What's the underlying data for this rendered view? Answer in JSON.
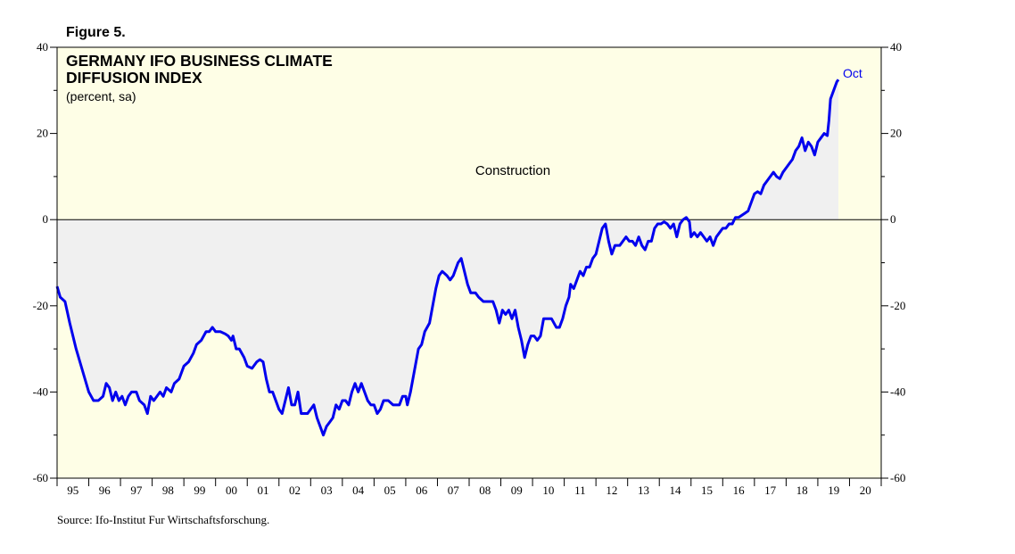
{
  "figure_label": "Figure 5.",
  "source": "Source: Ifo-Institut Fur Wirtschaftsforschung.",
  "colors": {
    "plot_background": "#fefee6",
    "fill": "#f0f0f0",
    "series_line": "#0000ee",
    "axis": "#000000"
  },
  "chart_data": {
    "type": "area",
    "title": "GERMANY IFO BUSINESS CLIMATE",
    "title_line2": "DIFFUSION INDEX",
    "subtitle": "(percent, sa)",
    "annotation": "Construction",
    "end_label": "Oct",
    "ylim": [
      -60,
      40
    ],
    "xlim": [
      1995.0,
      2021.0
    ],
    "y_ticks": [
      -60,
      -40,
      -20,
      0,
      20,
      40
    ],
    "x_tick_labels": [
      "95",
      "96",
      "97",
      "98",
      "99",
      "00",
      "01",
      "02",
      "03",
      "04",
      "05",
      "06",
      "07",
      "08",
      "09",
      "10",
      "11",
      "12",
      "13",
      "14",
      "15",
      "16",
      "17",
      "18",
      "19",
      "20"
    ],
    "grid": false,
    "series": [
      {
        "values": [
          [
            1995.0,
            -15.5
          ],
          [
            1995.1,
            -18.0
          ],
          [
            1995.25,
            -19.0
          ],
          [
            1995.4,
            -24.0
          ],
          [
            1995.6,
            -30.0
          ],
          [
            1995.8,
            -35.0
          ],
          [
            1996.0,
            -40.0
          ],
          [
            1996.15,
            -42.0
          ],
          [
            1996.3,
            -42.0
          ],
          [
            1996.45,
            -41.0
          ],
          [
            1996.55,
            -38.0
          ],
          [
            1996.65,
            -39.0
          ],
          [
            1996.75,
            -42.0
          ],
          [
            1996.85,
            -40.0
          ],
          [
            1996.95,
            -42.0
          ],
          [
            1997.05,
            -41.0
          ],
          [
            1997.15,
            -43.0
          ],
          [
            1997.25,
            -41.0
          ],
          [
            1997.35,
            -40.0
          ],
          [
            1997.5,
            -40.0
          ],
          [
            1997.6,
            -42.0
          ],
          [
            1997.75,
            -43.0
          ],
          [
            1997.85,
            -45.0
          ],
          [
            1997.95,
            -41.0
          ],
          [
            1998.05,
            -42.0
          ],
          [
            1998.15,
            -41.0
          ],
          [
            1998.25,
            -40.0
          ],
          [
            1998.35,
            -41.0
          ],
          [
            1998.45,
            -39.0
          ],
          [
            1998.6,
            -40.0
          ],
          [
            1998.7,
            -38.0
          ],
          [
            1998.85,
            -37.0
          ],
          [
            1999.0,
            -34.0
          ],
          [
            1999.15,
            -33.0
          ],
          [
            1999.3,
            -31.0
          ],
          [
            1999.4,
            -29.0
          ],
          [
            1999.55,
            -28.0
          ],
          [
            1999.7,
            -26.0
          ],
          [
            1999.8,
            -26.0
          ],
          [
            1999.9,
            -25.0
          ],
          [
            2000.0,
            -26.0
          ],
          [
            2000.15,
            -26.0
          ],
          [
            2000.3,
            -26.5
          ],
          [
            2000.4,
            -27.0
          ],
          [
            2000.5,
            -28.0
          ],
          [
            2000.55,
            -27.0
          ],
          [
            2000.65,
            -30.0
          ],
          [
            2000.75,
            -30.0
          ],
          [
            2000.9,
            -32.0
          ],
          [
            2001.0,
            -34.0
          ],
          [
            2001.15,
            -34.5
          ],
          [
            2001.3,
            -33.0
          ],
          [
            2001.4,
            -32.5
          ],
          [
            2001.5,
            -33.0
          ],
          [
            2001.6,
            -37.0
          ],
          [
            2001.7,
            -40.0
          ],
          [
            2001.8,
            -40.0
          ],
          [
            2001.9,
            -42.0
          ],
          [
            2002.0,
            -44.0
          ],
          [
            2002.1,
            -45.0
          ],
          [
            2002.2,
            -42.0
          ],
          [
            2002.3,
            -39.0
          ],
          [
            2002.4,
            -43.0
          ],
          [
            2002.5,
            -43.0
          ],
          [
            2002.6,
            -40.0
          ],
          [
            2002.7,
            -45.0
          ],
          [
            2002.8,
            -45.0
          ],
          [
            2002.9,
            -45.0
          ],
          [
            2003.0,
            -44.0
          ],
          [
            2003.1,
            -43.0
          ],
          [
            2003.2,
            -46.0
          ],
          [
            2003.3,
            -48.0
          ],
          [
            2003.4,
            -50.0
          ],
          [
            2003.5,
            -48.0
          ],
          [
            2003.6,
            -47.0
          ],
          [
            2003.7,
            -46.0
          ],
          [
            2003.8,
            -43.0
          ],
          [
            2003.9,
            -44.0
          ],
          [
            2004.0,
            -42.0
          ],
          [
            2004.1,
            -42.0
          ],
          [
            2004.2,
            -43.0
          ],
          [
            2004.3,
            -40.0
          ],
          [
            2004.4,
            -38.0
          ],
          [
            2004.5,
            -40.0
          ],
          [
            2004.6,
            -38.0
          ],
          [
            2004.7,
            -40.0
          ],
          [
            2004.8,
            -42.0
          ],
          [
            2004.9,
            -43.0
          ],
          [
            2005.0,
            -43.0
          ],
          [
            2005.1,
            -45.0
          ],
          [
            2005.2,
            -44.0
          ],
          [
            2005.3,
            -42.0
          ],
          [
            2005.45,
            -42.0
          ],
          [
            2005.6,
            -43.0
          ],
          [
            2005.7,
            -43.0
          ],
          [
            2005.8,
            -43.0
          ],
          [
            2005.9,
            -41.0
          ],
          [
            2006.0,
            -41.0
          ],
          [
            2006.05,
            -43.0
          ],
          [
            2006.15,
            -40.0
          ],
          [
            2006.3,
            -34.0
          ],
          [
            2006.4,
            -30.0
          ],
          [
            2006.5,
            -29.0
          ],
          [
            2006.6,
            -26.0
          ],
          [
            2006.75,
            -24.0
          ],
          [
            2006.85,
            -20.0
          ],
          [
            2006.95,
            -16.0
          ],
          [
            2007.05,
            -13.0
          ],
          [
            2007.15,
            -12.0
          ],
          [
            2007.3,
            -13.0
          ],
          [
            2007.4,
            -14.0
          ],
          [
            2007.5,
            -13.0
          ],
          [
            2007.65,
            -10.0
          ],
          [
            2007.75,
            -9.0
          ],
          [
            2007.85,
            -12.0
          ],
          [
            2007.95,
            -15.0
          ],
          [
            2008.05,
            -17.0
          ],
          [
            2008.2,
            -17.0
          ],
          [
            2008.3,
            -18.0
          ],
          [
            2008.45,
            -19.0
          ],
          [
            2008.6,
            -19.0
          ],
          [
            2008.75,
            -19.0
          ],
          [
            2008.85,
            -21.0
          ],
          [
            2008.95,
            -24.0
          ],
          [
            2009.05,
            -21.0
          ],
          [
            2009.15,
            -22.0
          ],
          [
            2009.25,
            -21.0
          ],
          [
            2009.35,
            -23.0
          ],
          [
            2009.45,
            -21.0
          ],
          [
            2009.55,
            -25.0
          ],
          [
            2009.65,
            -28.0
          ],
          [
            2009.75,
            -32.0
          ],
          [
            2009.85,
            -29.0
          ],
          [
            2009.95,
            -27.0
          ],
          [
            2010.05,
            -27.0
          ],
          [
            2010.15,
            -28.0
          ],
          [
            2010.25,
            -27.0
          ],
          [
            2010.35,
            -23.0
          ],
          [
            2010.45,
            -23.0
          ],
          [
            2010.6,
            -23.0
          ],
          [
            2010.75,
            -25.0
          ],
          [
            2010.85,
            -25.0
          ],
          [
            2010.95,
            -23.0
          ],
          [
            2011.05,
            -20.0
          ],
          [
            2011.15,
            -18.0
          ],
          [
            2011.2,
            -15.0
          ],
          [
            2011.3,
            -16.0
          ],
          [
            2011.4,
            -14.0
          ],
          [
            2011.5,
            -12.0
          ],
          [
            2011.6,
            -13.0
          ],
          [
            2011.7,
            -11.0
          ],
          [
            2011.8,
            -11.0
          ],
          [
            2011.9,
            -9.0
          ],
          [
            2012.0,
            -8.0
          ],
          [
            2012.1,
            -5.0
          ],
          [
            2012.2,
            -2.0
          ],
          [
            2012.3,
            -1.0
          ],
          [
            2012.4,
            -5.0
          ],
          [
            2012.5,
            -8.0
          ],
          [
            2012.6,
            -6.0
          ],
          [
            2012.75,
            -6.0
          ],
          [
            2012.85,
            -5.0
          ],
          [
            2012.95,
            -4.0
          ],
          [
            2013.05,
            -5.0
          ],
          [
            2013.15,
            -5.0
          ],
          [
            2013.25,
            -6.0
          ],
          [
            2013.35,
            -4.0
          ],
          [
            2013.45,
            -6.0
          ],
          [
            2013.55,
            -7.0
          ],
          [
            2013.65,
            -5.0
          ],
          [
            2013.75,
            -5.0
          ],
          [
            2013.85,
            -2.0
          ],
          [
            2013.95,
            -1.0
          ],
          [
            2014.05,
            -1.0
          ],
          [
            2014.15,
            -0.5
          ],
          [
            2014.25,
            -1.0
          ],
          [
            2014.35,
            -2.0
          ],
          [
            2014.45,
            -1.0
          ],
          [
            2014.55,
            -4.0
          ],
          [
            2014.65,
            -1.0
          ],
          [
            2014.75,
            0.0
          ],
          [
            2014.85,
            0.5
          ],
          [
            2014.95,
            -0.5
          ],
          [
            2015.0,
            -4.0
          ],
          [
            2015.1,
            -3.0
          ],
          [
            2015.2,
            -4.0
          ],
          [
            2015.3,
            -3.0
          ],
          [
            2015.4,
            -4.0
          ],
          [
            2015.5,
            -5.0
          ],
          [
            2015.6,
            -4.0
          ],
          [
            2015.7,
            -6.0
          ],
          [
            2015.8,
            -4.0
          ],
          [
            2015.9,
            -3.0
          ],
          [
            2016.0,
            -2.0
          ],
          [
            2016.1,
            -2.0
          ],
          [
            2016.2,
            -1.0
          ],
          [
            2016.3,
            -1.0
          ],
          [
            2016.4,
            0.5
          ],
          [
            2016.5,
            0.5
          ],
          [
            2016.6,
            1.0
          ],
          [
            2016.7,
            1.5
          ],
          [
            2016.8,
            2.0
          ],
          [
            2016.9,
            4.0
          ],
          [
            2017.0,
            6.0
          ],
          [
            2017.1,
            6.5
          ],
          [
            2017.2,
            6.0
          ],
          [
            2017.3,
            8.0
          ],
          [
            2017.4,
            9.0
          ],
          [
            2017.5,
            10.0
          ],
          [
            2017.6,
            11.0
          ],
          [
            2017.7,
            10.0
          ],
          [
            2017.8,
            9.5
          ],
          [
            2017.9,
            11.0
          ],
          [
            2018.0,
            12.0
          ],
          [
            2018.1,
            13.0
          ],
          [
            2018.2,
            14.0
          ],
          [
            2018.3,
            16.0
          ],
          [
            2018.4,
            17.0
          ],
          [
            2018.5,
            19.0
          ],
          [
            2018.6,
            16.0
          ],
          [
            2018.7,
            18.0
          ],
          [
            2018.8,
            17.0
          ],
          [
            2018.9,
            15.0
          ],
          [
            2019.0,
            18.0
          ],
          [
            2019.1,
            19.0
          ],
          [
            2019.2,
            20.0
          ],
          [
            2019.3,
            19.5
          ],
          [
            2019.35,
            23.0
          ],
          [
            2019.4,
            28.0
          ],
          [
            2019.5,
            30.0
          ],
          [
            2019.6,
            32.0
          ],
          [
            2019.65,
            32.5
          ]
        ]
      }
    ]
  }
}
